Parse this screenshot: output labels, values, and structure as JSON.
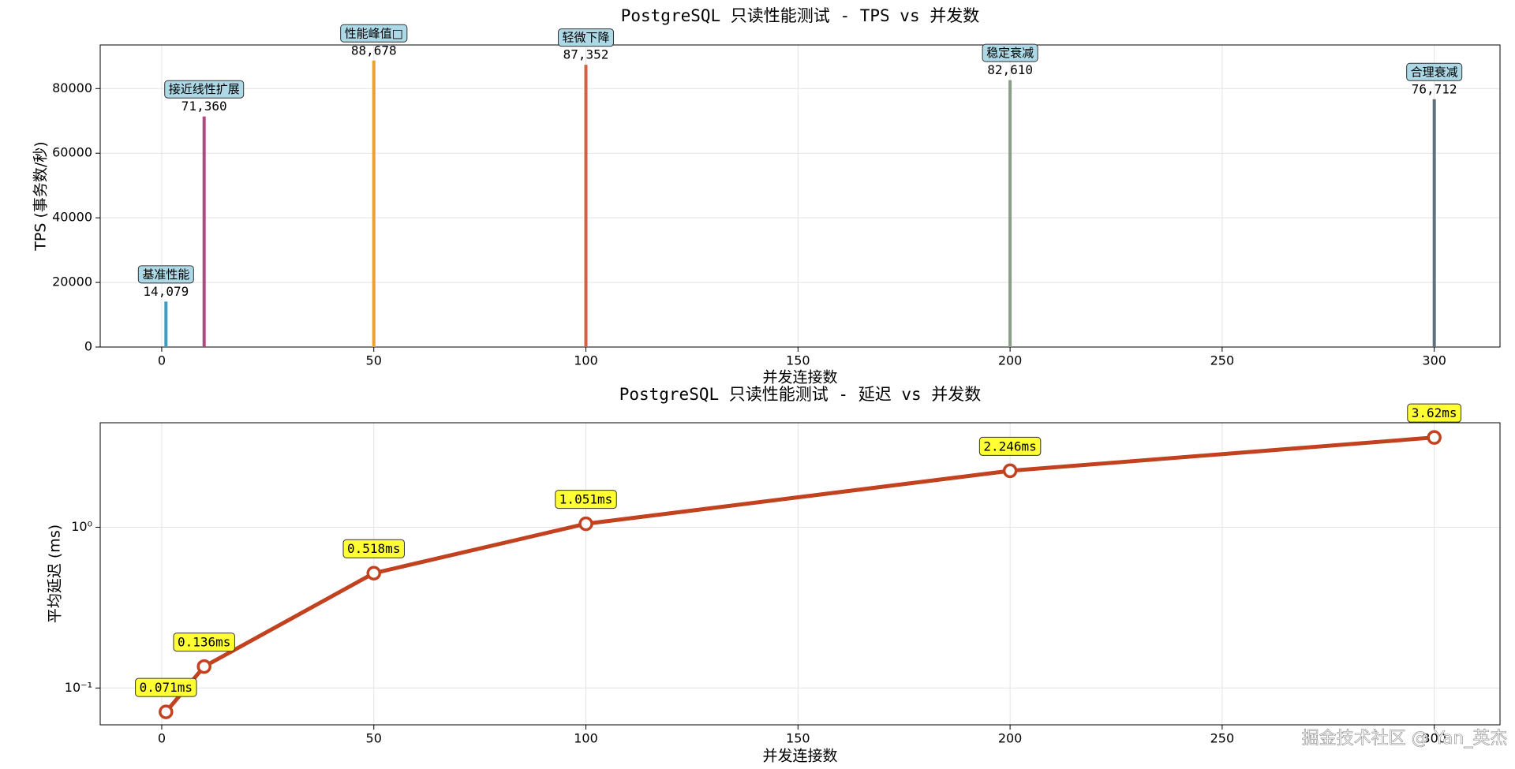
{
  "chart_data": [
    {
      "type": "bar",
      "title": "PostgreSQL 只读性能测试 - TPS vs 并发数",
      "x_label": "并发连接数",
      "y_label": "TPS (事务数/秒)",
      "x": [
        1,
        10,
        50,
        100,
        200,
        300
      ],
      "values": [
        14079,
        71360,
        88678,
        87352,
        82610,
        76712
      ],
      "value_labels": [
        "14,079",
        "71,360",
        "88,678",
        "87,352",
        "82,610",
        "76,712"
      ],
      "annotations": [
        "基准性能",
        "接近线性扩展",
        "性能峰值□",
        "轻微下降",
        "稳定衰减",
        "合理衰减"
      ],
      "colors": [
        "#3f9dbf",
        "#b0497e",
        "#e9a12f",
        "#d0623d",
        "#8a9e88",
        "#5f6f7b"
      ],
      "xlim": [
        -14.5,
        315.5
      ],
      "xticks": [
        0,
        50,
        100,
        150,
        200,
        250,
        300
      ],
      "ylim": [
        0,
        93500
      ],
      "yticks": [
        0,
        20000,
        40000,
        60000,
        80000
      ],
      "grid": true
    },
    {
      "type": "line",
      "title": "PostgreSQL 只读性能测试 - 延迟 vs 并发数",
      "x_label": "并发连接数",
      "y_label": "平均延迟 (ms)",
      "x": [
        1,
        10,
        50,
        100,
        200,
        300
      ],
      "values": [
        0.071,
        0.136,
        0.518,
        1.051,
        2.246,
        3.62
      ],
      "value_labels": [
        "0.071ms",
        "0.136ms",
        "0.518ms",
        "1.051ms",
        "2.246ms",
        "3.62ms"
      ],
      "color": "#c2411f",
      "log_y": true,
      "xlim": [
        -14.5,
        315.5
      ],
      "xticks": [
        0,
        50,
        100,
        150,
        200,
        250,
        300
      ],
      "ylim": [
        0.059,
        4.47
      ],
      "yticks": [
        {
          "value": 1,
          "label": "10⁰"
        },
        {
          "value": 0.1,
          "label": "10⁻¹"
        }
      ],
      "grid": true
    }
  ],
  "watermark": "掘金技术社区 @ Yan_英杰"
}
